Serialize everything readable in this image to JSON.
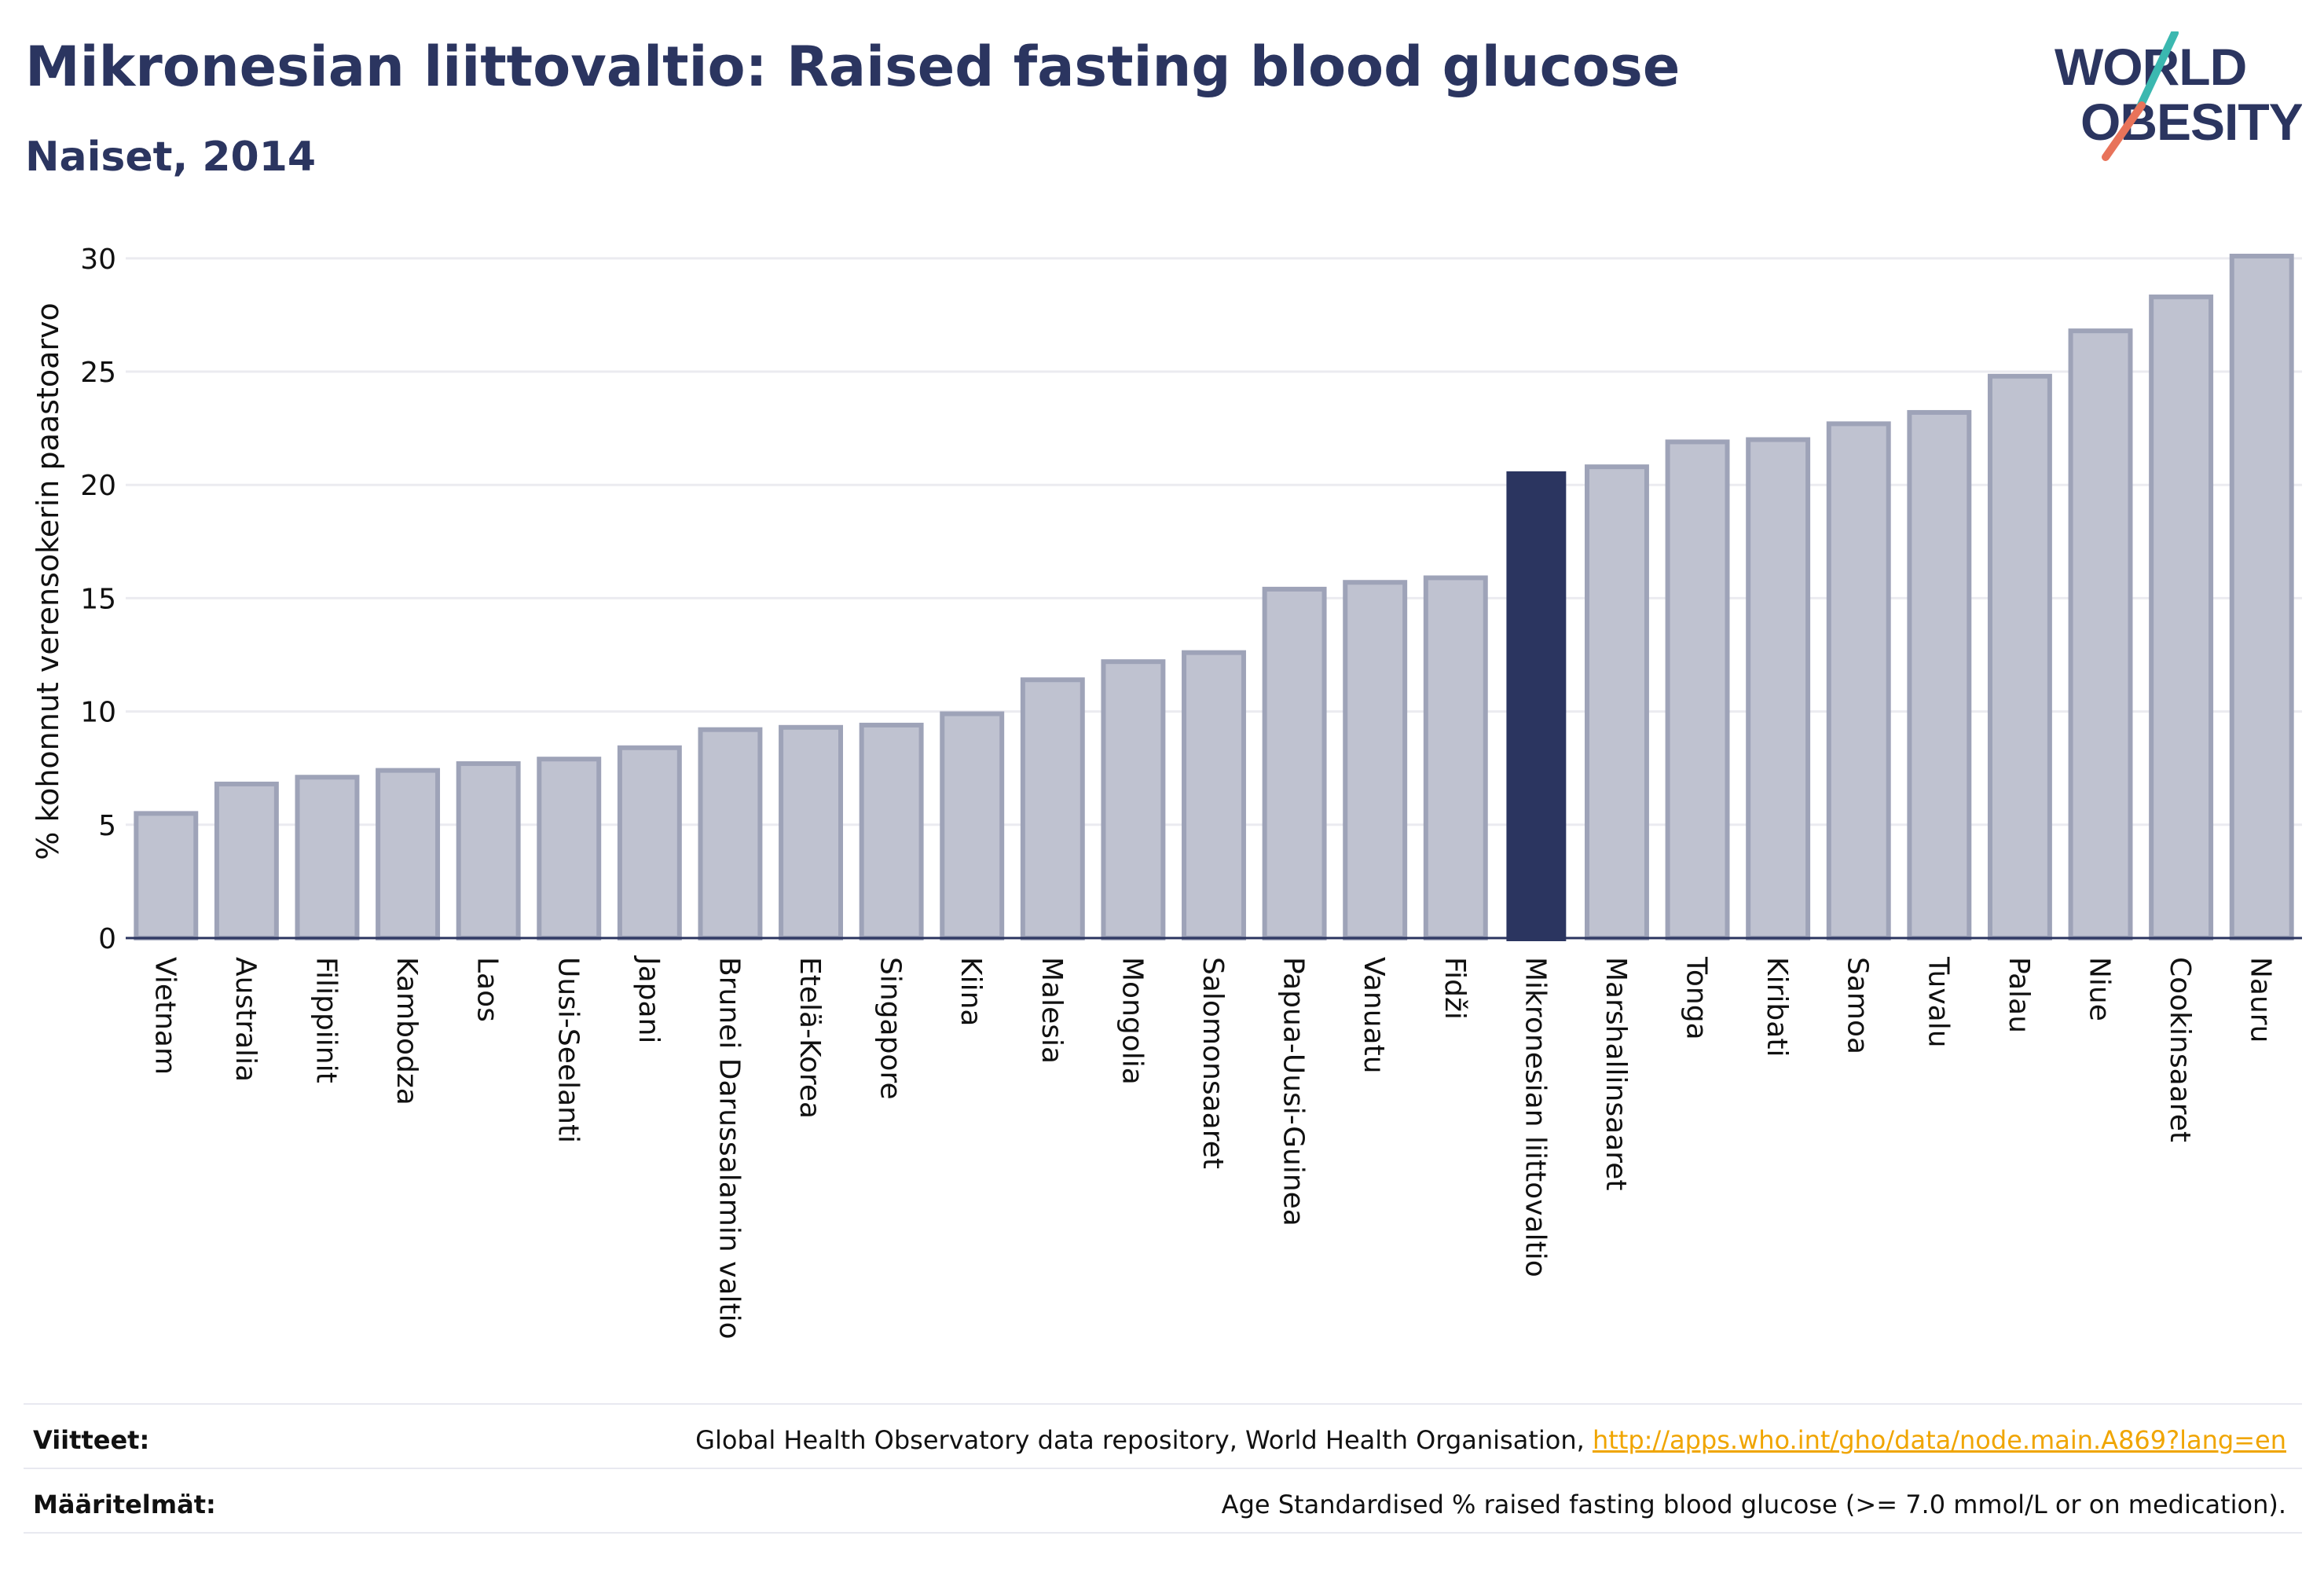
{
  "header": {
    "title": "Mikronesian liittovaltio: Raised fasting blood glucose",
    "subtitle": "Naiset, 2014"
  },
  "logo": {
    "line1": "WORLD",
    "line2": "OBESITY",
    "colors": {
      "text": "#2b3560",
      "slash_teal": "#3bb8b0",
      "slash_coral": "#e8735a"
    }
  },
  "chart_data": {
    "type": "bar",
    "ylabel": "% kohonnut verensokerin paastoarvo",
    "ylim": [
      0,
      31
    ],
    "yticks": [
      0,
      5,
      10,
      15,
      20,
      25,
      30
    ],
    "grid": true,
    "highlight": "Mikronesian liittovaltio",
    "colors": {
      "bar": "#bfc2d0",
      "bar_border": "#9ea3b8",
      "highlight": "#2b3560",
      "grid": "#ebebf0",
      "axis": "#2b3560"
    },
    "categories": [
      "Vietnam",
      "Australia",
      "Filippiinit",
      "Kambodza",
      "Laos",
      "Uusi-Seelanti",
      "Japani",
      "Brunei Darussalamin valtio",
      "Etelä-Korea",
      "Singapore",
      "Kiina",
      "Malesia",
      "Mongolia",
      "Salomonsaaret",
      "Papua-Uusi-Guinea",
      "Vanuatu",
      "Fidži",
      "Mikronesian liittovaltio",
      "Marshallinsaaret",
      "Tonga",
      "Kiribati",
      "Samoa",
      "Tuvalu",
      "Palau",
      "Niue",
      "Cookinsaaret",
      "Nauru"
    ],
    "values": [
      5.5,
      6.8,
      7.1,
      7.4,
      7.7,
      7.9,
      8.4,
      9.2,
      9.3,
      9.4,
      9.9,
      11.4,
      12.2,
      12.6,
      15.4,
      15.7,
      15.9,
      20.6,
      20.8,
      21.9,
      22.0,
      22.7,
      23.2,
      24.8,
      26.8,
      28.3,
      30.1
    ]
  },
  "footer": {
    "refs_label": "Viitteet:",
    "refs_text": "Global Health Observatory data repository, World Health Organisation, ",
    "refs_link": "http://apps.who.int/gho/data/node.main.A869?lang=en",
    "defs_label": "Määritelmät:",
    "defs_text": "Age Standardised % raised fasting blood glucose (>= 7.0 mmol/L or on medication)."
  }
}
